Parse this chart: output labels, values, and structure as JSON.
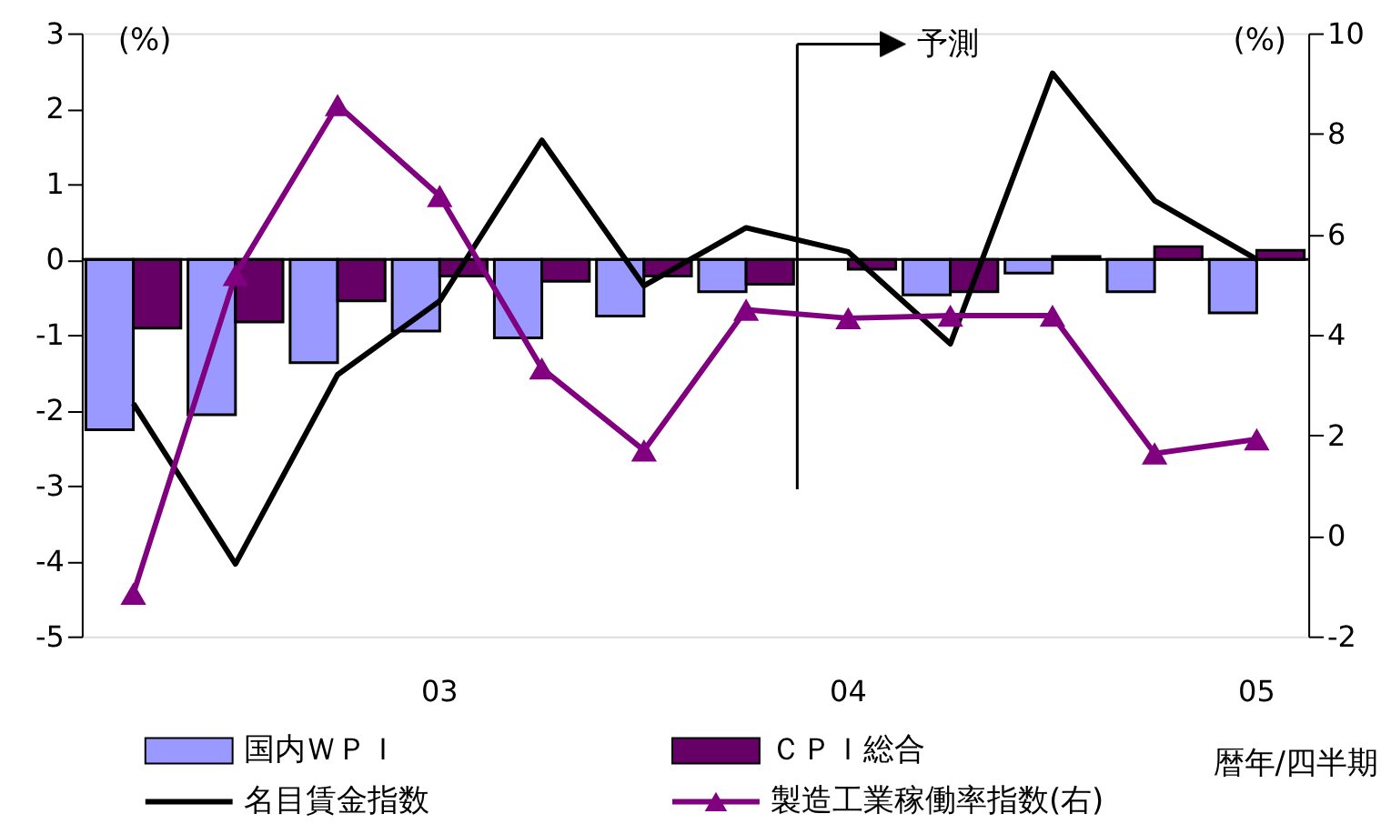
{
  "chart_data": {
    "type": "bar",
    "categories": [
      null,
      null,
      null,
      "03",
      null,
      null,
      null,
      "04",
      null,
      null,
      null,
      "05"
    ],
    "xlabel": "暦年/四半期",
    "ylabel": "(%)",
    "y2label": "(%)",
    "ylim": [
      -5,
      3
    ],
    "yticks": [
      -5,
      -4,
      -3,
      -2,
      -1,
      0,
      1,
      2,
      3
    ],
    "y2lim": [
      -2,
      10
    ],
    "y2ticks": [
      -2,
      0,
      2,
      4,
      6,
      8,
      10
    ],
    "series": [
      {
        "name": "国内ＷＰＩ",
        "color": "#9999ff",
        "values": [
          -2.26,
          -2.06,
          -1.37,
          -0.95,
          -1.04,
          -0.75,
          -0.43,
          null,
          -0.47,
          -0.18,
          -0.43,
          -0.71
        ]
      },
      {
        "name": "ＣＰＩ総合",
        "color": "#660066",
        "values": [
          -0.91,
          -0.83,
          -0.55,
          -0.22,
          -0.29,
          -0.22,
          -0.33,
          -0.13,
          -0.43,
          0.04,
          0.17,
          0.12
        ]
      },
      {
        "name": "名目賃金指数",
        "type": "line",
        "color": "#000000",
        "marker": "none",
        "values": [
          -1.91,
          -4.04,
          -1.53,
          -0.55,
          1.58,
          -0.35,
          0.42,
          0.1,
          -1.12,
          2.47,
          0.78,
          0
        ]
      },
      {
        "name": "製造工業稼働率指数(右)",
        "type": "line",
        "axis": "y2",
        "color": "#800080",
        "marker": "triangle",
        "values": [
          -1.15,
          5.19,
          8.57,
          6.76,
          3.33,
          1.7,
          4.5,
          4.33,
          4.38,
          4.38,
          1.64,
          1.92
        ]
      }
    ],
    "annotations": [
      "予測"
    ],
    "legend": "bottom"
  }
}
